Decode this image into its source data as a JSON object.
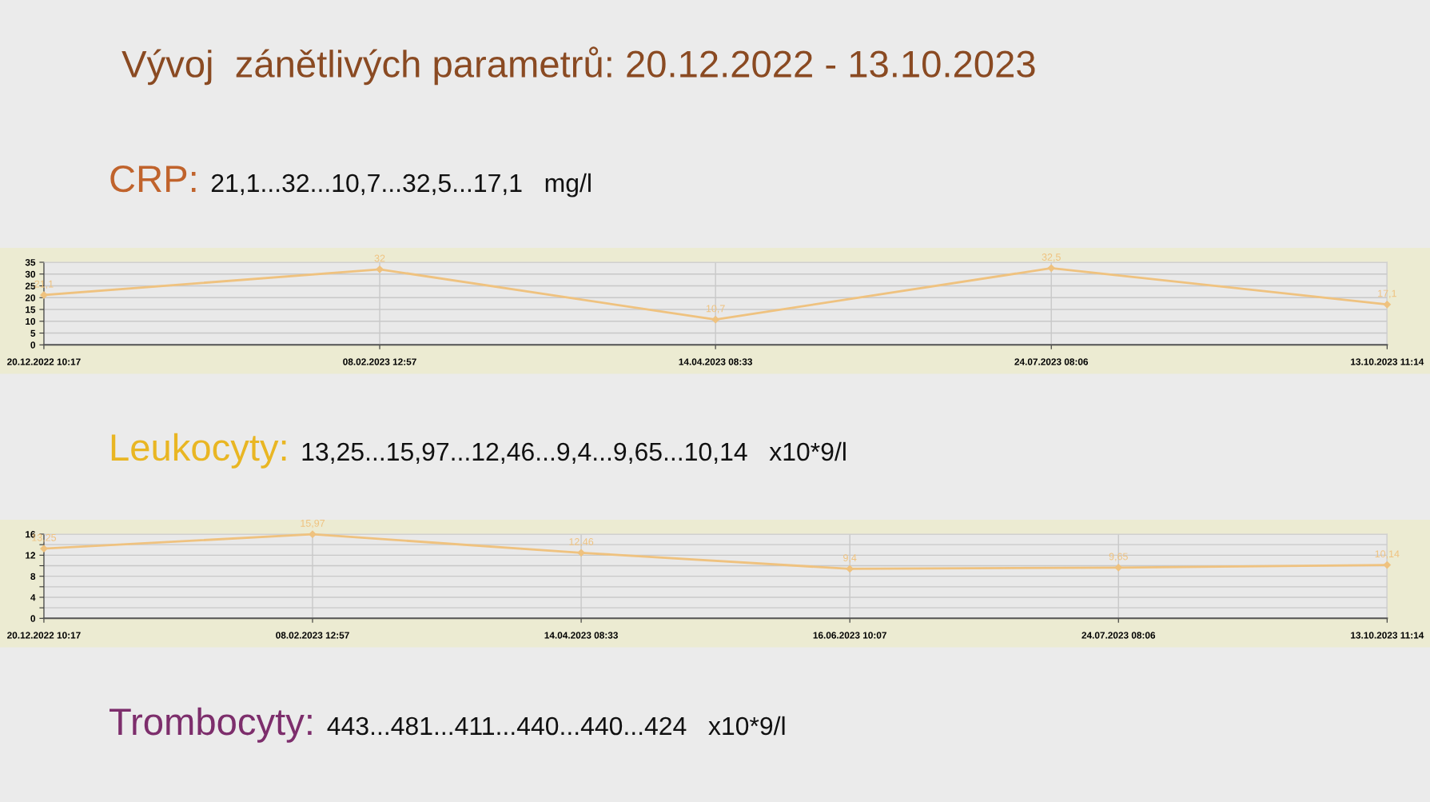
{
  "chart_data": [
    {
      "type": "line",
      "title": "Vývoj  zánětlivých parametrů: 20.12.2022 - 13.10.2023",
      "annotations": [
        "CRP:",
        "21,1...32...10,7...32,5...17,1   mg/l"
      ],
      "categories": [
        "20.12.2022 10:17",
        "08.02.2023 12:57",
        "14.04.2023 08:33",
        "24.07.2023 08:06",
        "13.10.2023 11:14"
      ],
      "series": [
        {
          "color": "#efc27f",
          "values": [
            21.1,
            32,
            10.7,
            32.5,
            17.1
          ],
          "value_labels": [
            "21,1",
            "32",
            "10,7",
            "32,5",
            "17,1"
          ]
        }
      ],
      "ylim": [
        0,
        35
      ],
      "yticks": [
        0,
        5,
        10,
        15,
        20,
        25,
        30,
        35
      ],
      "grid": true,
      "marker": "diamond",
      "line_style": "solid"
    },
    {
      "type": "line",
      "annotations": [
        "Leukocyty:",
        "13,25...15,97...12,46...9,4...9,65...10,14   x10*9/l",
        "Trombocyty:",
        "443...481...411...440...440...424   x10*9/l"
      ],
      "categories": [
        "20.12.2022 10:17",
        "08.02.2023 12:57",
        "14.04.2023 08:33",
        "16.06.2023 10:07",
        "24.07.2023 08:06",
        "13.10.2023 11:14"
      ],
      "series": [
        {
          "color": "#efc27f",
          "values": [
            13.25,
            15.97,
            12.46,
            9.4,
            9.65,
            10.14
          ],
          "value_labels": [
            "13,25",
            "15,97",
            "12,46",
            "9,4",
            "9,65",
            "10,14"
          ]
        }
      ],
      "ylim": [
        0,
        16
      ],
      "yticks": [
        0,
        {
          "value": 2,
          "label": null
        },
        4,
        {
          "value": 6,
          "label": null
        },
        8,
        {
          "value": 10,
          "label": null
        },
        12,
        {
          "value": 14,
          "label": null
        },
        16
      ],
      "grid": true,
      "marker": "diamond",
      "line_style": "solid"
    }
  ]
}
